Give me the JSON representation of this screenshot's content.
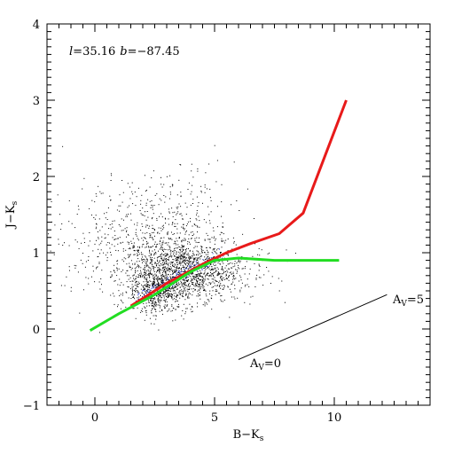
{
  "chart_data": {
    "type": "scatter",
    "xlabel": "B−K",
    "xlabel_sub": "s",
    "ylabel": "J−K",
    "ylabel_sub": "s",
    "xlim": [
      -2,
      14
    ],
    "ylim": [
      -1,
      4
    ],
    "x_ticks": [
      0,
      5,
      10
    ],
    "x_tick_labels": [
      "0",
      "5",
      "10"
    ],
    "y_ticks": [
      -1,
      0,
      1,
      2,
      3,
      4
    ],
    "y_tick_labels": [
      "−1",
      "0",
      "1",
      "2",
      "3",
      "4"
    ],
    "x_minor_step": 0.5,
    "y_minor_step": 0.1,
    "grid": false,
    "legend": "none",
    "coords": {
      "l_label": "l",
      "l_value": "=35.16",
      "b_label": "b",
      "b_value": "=−87.45"
    },
    "series": [
      {
        "kind": "line",
        "color": "#e81a1a",
        "values": [
          [
            1.5,
            0.3
          ],
          [
            3.0,
            0.6
          ],
          [
            4.5,
            0.85
          ],
          [
            5.5,
            1.0
          ],
          [
            6.5,
            1.12
          ],
          [
            7.7,
            1.25
          ],
          [
            8.7,
            1.52
          ],
          [
            10.5,
            3.0
          ]
        ]
      },
      {
        "kind": "line",
        "color": "#22dd22",
        "values": [
          [
            -0.2,
            -0.02
          ],
          [
            1.0,
            0.2
          ],
          [
            2.5,
            0.45
          ],
          [
            4.0,
            0.75
          ],
          [
            5.0,
            0.9
          ],
          [
            6.0,
            0.93
          ],
          [
            7.5,
            0.9
          ],
          [
            10.2,
            0.9
          ]
        ]
      },
      {
        "kind": "reddening_vector",
        "color": "#000000",
        "start": [
          6.0,
          -0.4
        ],
        "end": [
          12.2,
          0.45
        ],
        "start_label": "A",
        "start_label_sub": "V",
        "start_label_value": "=0",
        "end_label": "A",
        "end_label_sub": "V",
        "end_label_value": "=5"
      }
    ],
    "scatter": {
      "color": "#000000",
      "dense_color": "#1a2ccc",
      "clusters": [
        {
          "cx": 3.8,
          "cy": 0.75,
          "sx": 1.3,
          "sy": 0.2,
          "n": 1400
        },
        {
          "cx": 2.6,
          "cy": 0.5,
          "sx": 0.6,
          "sy": 0.15,
          "n": 500
        },
        {
          "cx": 2.2,
          "cy": 1.15,
          "sx": 1.8,
          "sy": 0.35,
          "n": 600
        },
        {
          "cx": 3.5,
          "cy": 1.6,
          "sx": 1.2,
          "sy": 0.35,
          "n": 120
        }
      ]
    }
  }
}
